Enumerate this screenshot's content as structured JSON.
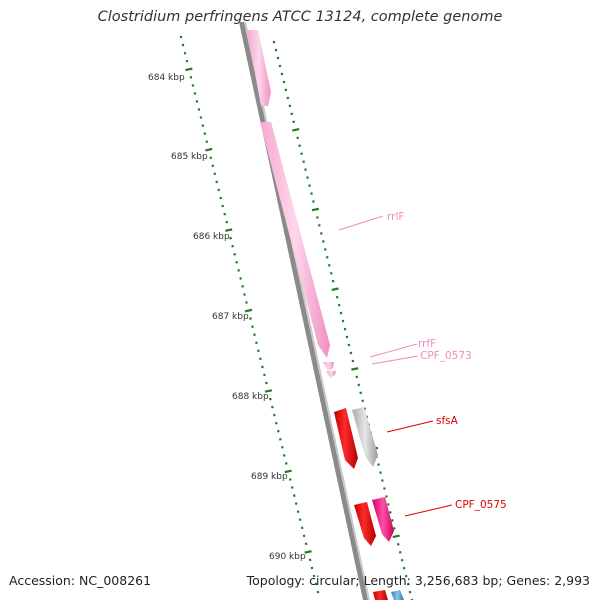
{
  "title": "Clostridium perfringens ATCC 13124, complete genome",
  "accession": "Accession: NC_008261",
  "summary": "Topology: circular; Length: 3,256,683 bp; Genes: 2,993",
  "ticks": [
    "684 kbp",
    "685 kbp",
    "686 kbp",
    "687 kbp",
    "688 kbp",
    "689 kbp",
    "690 kbp"
  ],
  "gene_labels": [
    {
      "id": "rrlF",
      "text": "rrlF",
      "color": "#f08cbe"
    },
    {
      "id": "rrfF",
      "text": "rrfF",
      "color": "#f08cbe"
    },
    {
      "id": "CPF_0573",
      "text": "CPF_0573",
      "color": "#f08cbe"
    },
    {
      "id": "sfsA",
      "text": "sfsA",
      "color": "#e00000"
    },
    {
      "id": "CPF_0575",
      "text": "CPF_0575",
      "color": "#e00000"
    }
  ],
  "colors": {
    "rRNA": "#f7a8cf",
    "CDS_red": "#ff0000",
    "CDS_grey": "#c8c8c8",
    "CDS_magenta": "#ff1493",
    "CDS_blue": "#4a9bd1",
    "backbone": "#8a8a8a",
    "ticks": "#1e7d1e"
  }
}
